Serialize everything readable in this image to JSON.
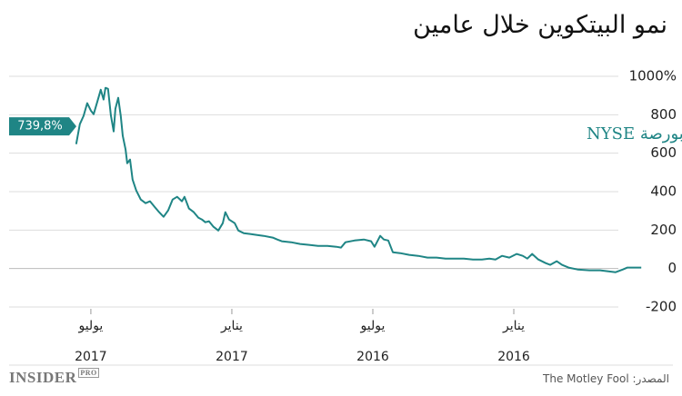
{
  "chart_data": {
    "type": "line",
    "title": "نمو البيتكوين خلال عامين",
    "x_reversed": true,
    "xlim": [
      2015.526,
      2017.79
    ],
    "xticks": [
      {
        "value": 2017.5,
        "label": "يوليو\n2017"
      },
      {
        "value": 2017,
        "label": "يناير\n2017"
      },
      {
        "value": 2016.5,
        "label": "يوليو\n2016"
      },
      {
        "value": 2016,
        "label": "يناير\n2016"
      }
    ],
    "ylim": [
      -200,
      1000
    ],
    "yticks": [
      {
        "value": 1000,
        "label": "1000%"
      },
      800,
      600,
      400,
      200,
      0,
      -200
    ],
    "grid": true,
    "callout": {
      "value": 739.8,
      "label": "739,8%"
    },
    "series": [
      {
        "name": "ديناميكية مؤشر البيتكوين في بورصة NYSE",
        "color": "#1f8585",
        "x": [
          2017.552,
          2017.539,
          2017.526,
          2017.513,
          2017.5,
          2017.49,
          2017.477,
          2017.465,
          2017.455,
          2017.448,
          2017.439,
          2017.429,
          2017.419,
          2017.413,
          2017.403,
          2017.394,
          2017.387,
          2017.377,
          2017.371,
          2017.361,
          2017.352,
          2017.339,
          2017.323,
          2017.306,
          2017.29,
          2017.274,
          2017.258,
          2017.242,
          2017.226,
          2017.21,
          2017.194,
          2017.177,
          2017.168,
          2017.152,
          2017.135,
          2017.119,
          2017.106,
          2017.094,
          2017.081,
          2017.065,
          2017.048,
          2017.032,
          2017.023,
          2017.01,
          2016.99,
          2016.977,
          2016.958,
          2016.935,
          2016.913,
          2016.887,
          2016.855,
          2016.839,
          2016.823,
          2016.79,
          2016.758,
          2016.726,
          2016.694,
          2016.661,
          2016.629,
          2016.613,
          2016.597,
          2016.565,
          2016.532,
          2016.506,
          2016.494,
          2016.474,
          2016.461,
          2016.445,
          2016.429,
          2016.403,
          2016.371,
          2016.339,
          2016.306,
          2016.274,
          2016.242,
          2016.21,
          2016.177,
          2016.145,
          2016.113,
          2016.087,
          2016.065,
          2016.042,
          2016.016,
          2015.99,
          2015.968,
          2015.952,
          2015.935,
          2015.913,
          2015.887,
          2015.871,
          2015.848,
          2015.829,
          2015.806,
          2015.774,
          2015.732,
          2015.694,
          2015.668,
          2015.639,
          2015.613,
          2015.597,
          2015.548
        ],
        "values": [
          647,
          751,
          794,
          860,
          822,
          803,
          869,
          930,
          879,
          940,
          935,
          798,
          713,
          831,
          888,
          794,
          690,
          619,
          548,
          567,
          463,
          406,
          359,
          340,
          350,
          321,
          293,
          269,
          302,
          359,
          373,
          350,
          373,
          312,
          293,
          265,
          255,
          241,
          246,
          217,
          198,
          236,
          293,
          255,
          236,
          198,
          184,
          180,
          175,
          170,
          161,
          151,
          142,
          137,
          128,
          123,
          118,
          118,
          113,
          109,
          137,
          146,
          151,
          142,
          113,
          170,
          151,
          146,
          85,
          80,
          71,
          66,
          57,
          57,
          52,
          52,
          52,
          47,
          47,
          52,
          47,
          66,
          57,
          76,
          66,
          52,
          76,
          47,
          28,
          19,
          38,
          19,
          5,
          -5,
          -9,
          -9,
          -14,
          -19,
          -5,
          5,
          5
        ]
      }
    ]
  },
  "footer": {
    "logo": "INSIDER",
    "logo_badge": "PRO",
    "source": "المصدر: The Motley Fool"
  }
}
